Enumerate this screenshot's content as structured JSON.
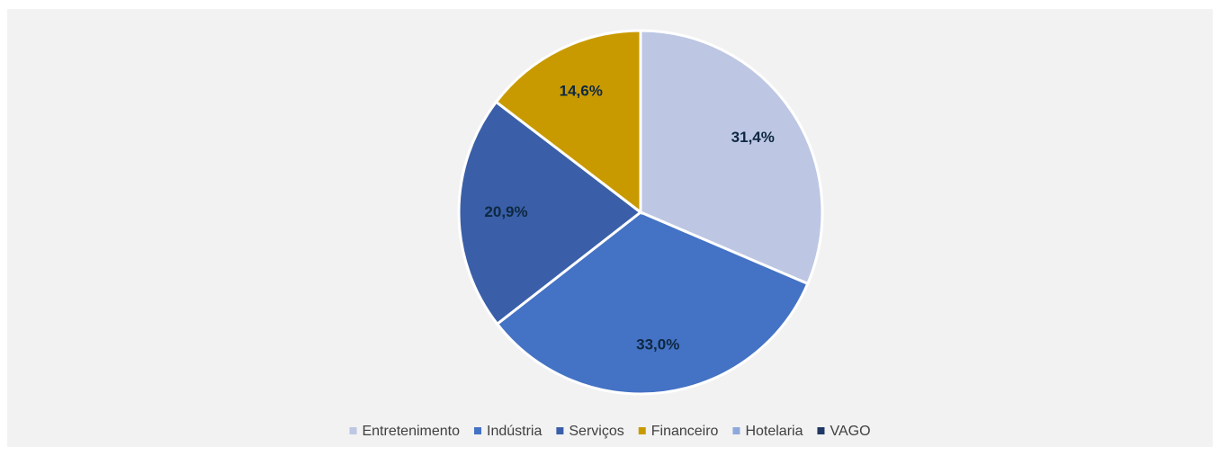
{
  "chart_data": {
    "type": "pie",
    "categories": [
      "Entretenimento",
      "Indústria",
      "Serviços",
      "Financeiro",
      "Hotelaria",
      "VAGO"
    ],
    "values": [
      31.4,
      33.0,
      20.9,
      14.6,
      0,
      0
    ],
    "value_labels": [
      "31,4%",
      "33,0%",
      "20,9%",
      "14,6%",
      null,
      null
    ],
    "colors": [
      "#bdc7e4",
      "#4472c4",
      "#3a5fa8",
      "#c99a00",
      "#8fa8dc",
      "#203864"
    ],
    "legend": "bottom"
  }
}
